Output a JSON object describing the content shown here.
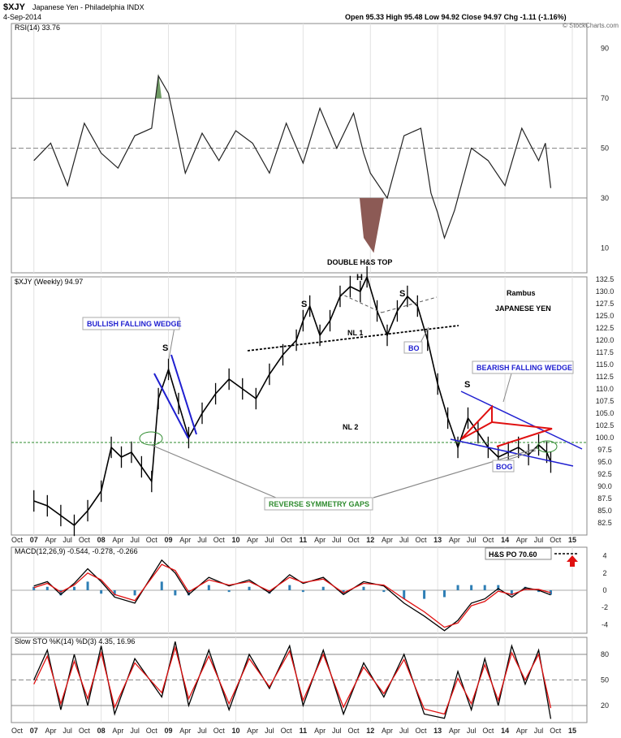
{
  "header": {
    "symbol": "$XJY",
    "name": "Japanese Yen - Philadelphia INDX",
    "date": "4-Sep-2014",
    "quote": "Open 95.33   High 95.48   Low 94.92   Close 94.97   Chg -1.11 (-1.16%)",
    "open": 95.33,
    "high": 95.48,
    "low": 94.92,
    "close": 94.97,
    "chg": -1.11,
    "chg_pct": -1.16,
    "watermark": "© StockCharts.com"
  },
  "colors": {
    "price": "#000000",
    "grid": "#bbbbbb",
    "support": "#2e8b2e",
    "wedge": "#1f1fd0",
    "red": "#e01010",
    "rsi_over": "#6f9a64",
    "rsi_under": "#8c5a55",
    "macd_hist": "#2f7fb5"
  },
  "chart_data": [
    {
      "type": "line",
      "panel": "rsi",
      "title": "RSI(14) 33.76",
      "indicator": "RSI(14)",
      "last": 33.76,
      "ylim": [
        0,
        100
      ],
      "yticks": [
        10,
        30,
        50,
        70,
        90
      ],
      "reference_lines": [
        70,
        50,
        30
      ],
      "x": [
        2007.0,
        2007.25,
        2007.5,
        2007.75,
        2008.0,
        2008.25,
        2008.5,
        2008.75,
        2008.85,
        2009.0,
        2009.25,
        2009.5,
        2009.75,
        2010.0,
        2010.25,
        2010.5,
        2010.75,
        2011.0,
        2011.25,
        2011.5,
        2011.75,
        2011.9,
        2012.0,
        2012.25,
        2012.5,
        2012.75,
        2012.9,
        2013.0,
        2013.1,
        2013.25,
        2013.5,
        2013.75,
        2014.0,
        2014.25,
        2014.5,
        2014.6,
        2014.68
      ],
      "y": [
        45,
        52,
        35,
        60,
        48,
        42,
        55,
        58,
        79,
        72,
        40,
        56,
        45,
        57,
        52,
        40,
        60,
        44,
        66,
        50,
        64,
        48,
        40,
        30,
        55,
        58,
        32,
        24,
        14,
        25,
        50,
        45,
        35,
        58,
        45,
        52,
        34
      ]
    },
    {
      "type": "line",
      "panel": "price",
      "title": "$XJY (Weekly) 94.97",
      "ylim": [
        80,
        133
      ],
      "yticks": [
        82.5,
        85.0,
        87.5,
        90.0,
        92.5,
        95.0,
        97.5,
        100.0,
        102.5,
        105.0,
        107.5,
        110.0,
        112.5,
        115.0,
        117.5,
        120.0,
        122.5,
        125.0,
        127.5,
        130.0,
        132.5
      ],
      "x": [
        2007.0,
        2007.2,
        2007.4,
        2007.6,
        2007.8,
        2008.0,
        2008.15,
        2008.3,
        2008.45,
        2008.6,
        2008.75,
        2008.85,
        2009.0,
        2009.15,
        2009.3,
        2009.5,
        2009.7,
        2009.9,
        2010.1,
        2010.3,
        2010.5,
        2010.7,
        2010.9,
        2011.0,
        2011.1,
        2011.25,
        2011.4,
        2011.55,
        2011.7,
        2011.85,
        2011.95,
        2012.1,
        2012.25,
        2012.4,
        2012.55,
        2012.7,
        2012.85,
        2013.0,
        2013.15,
        2013.3,
        2013.45,
        2013.6,
        2013.75,
        2013.9,
        2014.05,
        2014.2,
        2014.35,
        2014.5,
        2014.62,
        2014.68
      ],
      "y": [
        87.0,
        86.0,
        84.0,
        82.0,
        85.0,
        89.0,
        98.0,
        96.0,
        97.0,
        94.0,
        91.0,
        108.0,
        114.0,
        107.0,
        100.0,
        105.0,
        109.0,
        112.0,
        110.0,
        108.0,
        113.0,
        117.0,
        120.0,
        124.0,
        127.0,
        121.0,
        124.0,
        129.0,
        131.0,
        130.0,
        133.0,
        126.0,
        121.0,
        126.0,
        129.0,
        127.0,
        120.0,
        111.0,
        104.0,
        98.0,
        104.0,
        101.0,
        98.0,
        96.0,
        97.0,
        98.0,
        96.5,
        98.5,
        97.0,
        94.97
      ],
      "last": 94.97
    },
    {
      "type": "line",
      "panel": "macd",
      "title": "MACD(12,26,9) -0.544, -0.278, -0.266",
      "ylim": [
        -5,
        5
      ],
      "yticks": [
        -4,
        -2,
        0,
        2,
        4
      ],
      "series": [
        {
          "name": "MACD(12,26,9) -0.544",
          "values": [
            0.5,
            1.0,
            -0.5,
            0.8,
            2.5,
            1.0,
            -0.8,
            -1.5,
            3.5,
            2.0,
            -0.5,
            1.5,
            0.5,
            1.2,
            -0.3,
            1.8,
            0.8,
            1.5,
            -0.5,
            1.0,
            0.5,
            -1.5,
            -3.0,
            -4.7,
            -3.5,
            -1.5,
            -1.0,
            0.2,
            -0.8,
            0.3,
            0.0,
            -0.54
          ]
        },
        {
          "name": "-0.278",
          "values": [
            0.3,
            0.8,
            -0.2,
            0.6,
            2.0,
            1.2,
            -0.5,
            -1.2,
            3.0,
            2.3,
            -0.2,
            1.2,
            0.6,
            1.0,
            -0.1,
            1.5,
            0.9,
            1.3,
            -0.3,
            0.8,
            0.6,
            -1.0,
            -2.5,
            -4.3,
            -3.8,
            -1.8,
            -1.3,
            -0.1,
            -0.5,
            0.1,
            0.1,
            -0.28
          ]
        }
      ],
      "histogram_last": -0.266,
      "x": [
        2007.0,
        2007.2,
        2007.4,
        2007.6,
        2007.8,
        2008.0,
        2008.2,
        2008.5,
        2008.9,
        2009.1,
        2009.3,
        2009.6,
        2009.9,
        2010.2,
        2010.5,
        2010.8,
        2011.0,
        2011.3,
        2011.6,
        2011.9,
        2012.2,
        2012.5,
        2012.8,
        2013.1,
        2013.3,
        2013.5,
        2013.7,
        2013.9,
        2014.1,
        2014.3,
        2014.5,
        2014.68
      ]
    },
    {
      "type": "line",
      "panel": "stochastic",
      "title": "Slow STO %K(14) %D(3) 4.35, 16.96",
      "ylim": [
        0,
        100
      ],
      "yticks": [
        20,
        50,
        80
      ],
      "series": [
        {
          "name": "%K(14) 4.35",
          "values": [
            50,
            85,
            15,
            80,
            20,
            90,
            10,
            75,
            30,
            95,
            20,
            85,
            15,
            80,
            40,
            90,
            20,
            85,
            10,
            70,
            30,
            80,
            10,
            5,
            60,
            15,
            75,
            20,
            90,
            45,
            85,
            4.35
          ]
        },
        {
          "name": "%D(3) 16.96",
          "values": [
            45,
            78,
            22,
            72,
            28,
            82,
            18,
            70,
            35,
            88,
            28,
            78,
            22,
            75,
            42,
            84,
            26,
            80,
            18,
            65,
            34,
            74,
            16,
            10,
            52,
            22,
            68,
            26,
            82,
            50,
            80,
            16.96
          ]
        }
      ],
      "x": [
        2007.0,
        2007.2,
        2007.4,
        2007.6,
        2007.8,
        2008.0,
        2008.2,
        2008.5,
        2008.9,
        2009.1,
        2009.3,
        2009.6,
        2009.9,
        2010.2,
        2010.5,
        2010.8,
        2011.0,
        2011.3,
        2011.6,
        2011.9,
        2012.2,
        2012.5,
        2012.8,
        2013.1,
        2013.3,
        2013.5,
        2013.7,
        2013.9,
        2014.1,
        2014.3,
        2014.5,
        2014.68
      ]
    }
  ],
  "x_axis": {
    "labels": [
      "Oct",
      "07",
      "Apr",
      "Jul",
      "Oct",
      "08",
      "Apr",
      "Jul",
      "Oct",
      "09",
      "Apr",
      "Jul",
      "Oct",
      "10",
      "Apr",
      "Jul",
      "Oct",
      "11",
      "Apr",
      "Jul",
      "Oct",
      "12",
      "Apr",
      "Jul",
      "Oct",
      "13",
      "Apr",
      "Jul",
      "Oct",
      "14",
      "Apr",
      "Jul",
      "Oct",
      "15"
    ],
    "bold": [
      "07",
      "08",
      "09",
      "10",
      "11",
      "12",
      "13",
      "14",
      "15"
    ]
  },
  "annotations": {
    "double_hs_top": "DOUBLE H&S TOP",
    "rambus": "Rambus",
    "japanese_yen": "JAPANESE YEN",
    "bullish_wedge": "BULLISH FALLING WEDGE",
    "bearish_wedge": "BEARISH FALLING WEDGE",
    "nl1": "NL 1",
    "nl2": "NL 2",
    "bo": "BO",
    "bog": "BOG",
    "reverse_symmetry": "REVERSE SYMMETRY GAPS",
    "s_left": "S",
    "s1": "S",
    "h": "H",
    "s2": "S",
    "s_right": "S",
    "hs_po": "H&S PO 70.60"
  }
}
